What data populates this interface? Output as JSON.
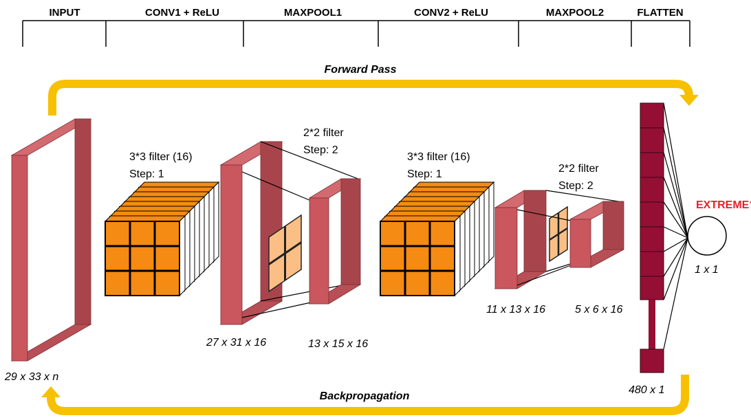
{
  "stages": [
    "INPUT",
    "CONV1 + ReLU",
    "MAXPOOL1",
    "CONV2 + ReLU",
    "MAXPOOL2",
    "FLATTEN"
  ],
  "arrows": {
    "forward": "Forward Pass",
    "backward": "Backpropagation"
  },
  "filters": {
    "conv1": {
      "size": "3*3 filter (16)",
      "step": "Step: 1"
    },
    "pool1": {
      "size": "2*2 filter",
      "step": "Step: 2"
    },
    "conv2": {
      "size": "3*3 filter (16)",
      "step": "Step: 1"
    },
    "pool2": {
      "size": "2*2 filter",
      "step": "Step: 2"
    }
  },
  "dimensions": {
    "input": "29 x 33 x n",
    "conv1_out": "27 x 31 x 16",
    "pool1_out": "13 x 15 x 16",
    "conv2_out": "11 x 13 x 16",
    "pool2_out": "5 x 6 x 16",
    "flatten": "480 x 1",
    "output": "1 x 1"
  },
  "output_label": "EXTREME?",
  "colors": {
    "volume_front": "#c9575d",
    "volume_side": "#a8454c",
    "volume_top": "#d36a70",
    "filter_orange": "#f58b12",
    "filter_light": "#fbbf86",
    "flatten_cell": "#950f35",
    "arrow": "#f7c000",
    "output_label": "#e8202a"
  }
}
